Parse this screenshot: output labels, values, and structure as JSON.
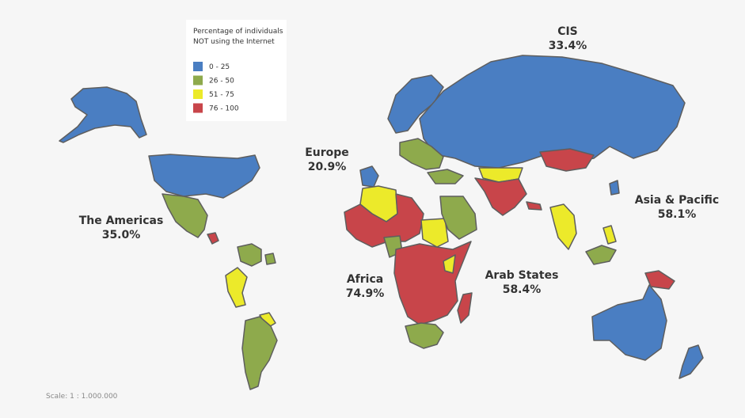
{
  "legend": {
    "title_lines": [
      "Percentage of individuals",
      "NOT using the Internet"
    ],
    "items": [
      {
        "label": "0 - 25",
        "color": "#4a7ec2"
      },
      {
        "label": "26 - 50",
        "color": "#8eaa4c"
      },
      {
        "label": "51 - 75",
        "color": "#ecea2a"
      },
      {
        "label": "76 - 100",
        "color": "#c8454a"
      }
    ]
  },
  "regions": [
    {
      "name": "CIS",
      "value": "33.4%"
    },
    {
      "name": "Europe",
      "value": "20.9%"
    },
    {
      "name": "Asia & Pacific",
      "value": "58.1%"
    },
    {
      "name": "The Americas",
      "value": "35.0%"
    },
    {
      "name": "Africa",
      "value": "74.9%"
    },
    {
      "name": "Arab States",
      "value": "58.4%"
    }
  ],
  "scale": "Scale: 1 : 1.000.000"
}
